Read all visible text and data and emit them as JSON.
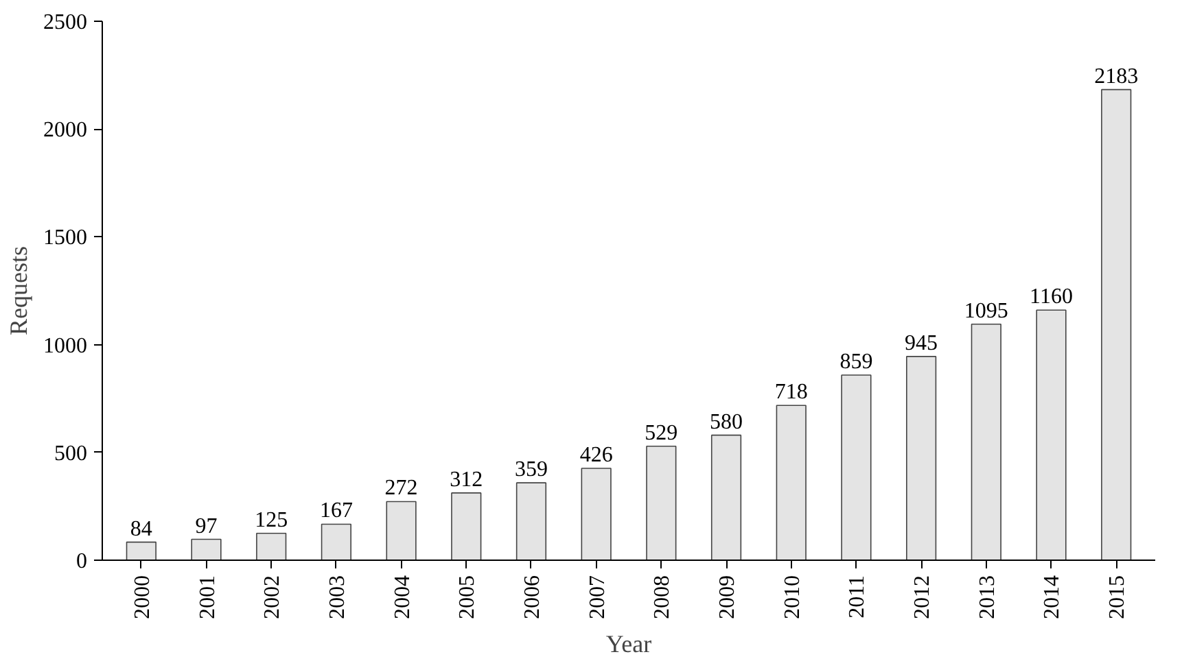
{
  "chart_data": {
    "type": "bar",
    "xlabel": "Year",
    "ylabel": "Requests",
    "categories": [
      "2000",
      "2001",
      "2002",
      "2003",
      "2004",
      "2005",
      "2006",
      "2007",
      "2008",
      "2009",
      "2010",
      "2011",
      "2012",
      "2013",
      "2014",
      "2015"
    ],
    "values": [
      84,
      97,
      125,
      167,
      272,
      312,
      359,
      426,
      529,
      580,
      718,
      859,
      945,
      1095,
      1160,
      2183
    ],
    "color": "#e4e4e4",
    "ylim": [
      0,
      2500
    ],
    "yticks": [
      0,
      500,
      1000,
      1500,
      2000,
      2500
    ],
    "grid": false,
    "data_labels": true
  }
}
